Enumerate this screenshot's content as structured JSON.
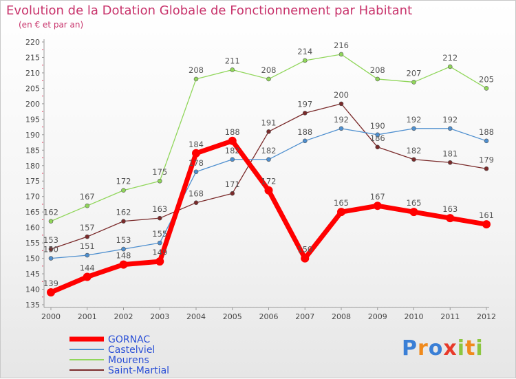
{
  "chart_data": {
    "type": "line",
    "title": "Evolution de la Dotation Globale de Fonctionnement par Habitant",
    "subtitle": "(en € et par an)",
    "x": [
      "2000",
      "2001",
      "2002",
      "2003",
      "2004",
      "2005",
      "2006",
      "2007",
      "2008",
      "2009",
      "2010",
      "2011",
      "2012"
    ],
    "ylim": [
      135,
      220
    ],
    "yticks": [
      135,
      140,
      145,
      150,
      155,
      160,
      165,
      170,
      175,
      180,
      185,
      190,
      195,
      200,
      205,
      210,
      215,
      220
    ],
    "grid": false,
    "legend_position": "bottom-left",
    "series": [
      {
        "name": "Mourens",
        "color": "#90d65a",
        "values": [
          162,
          167,
          172,
          175,
          208,
          211,
          208,
          214,
          216,
          208,
          207,
          212,
          205
        ]
      },
      {
        "name": "Saint-Martial",
        "color": "#7a2a2a",
        "values": [
          153,
          157,
          162,
          163,
          168,
          171,
          191,
          197,
          200,
          186,
          182,
          181,
          179
        ]
      },
      {
        "name": "Castelviel",
        "color": "#4e8fcf",
        "values": [
          150,
          151,
          153,
          155,
          178,
          182,
          182,
          188,
          192,
          190,
          192,
          192,
          188
        ]
      },
      {
        "name": "GORNAC",
        "color": "#ff0000",
        "values": [
          139,
          144,
          148,
          149,
          184,
          188,
          172,
          150,
          165,
          167,
          165,
          163,
          161
        ]
      }
    ],
    "legend": [
      "GORNAC",
      "Castelviel",
      "Mourens",
      "Saint-Martial"
    ]
  },
  "logo": {
    "text": "Proxiti",
    "letter_colors": [
      "#3a7fd6",
      "#f08a1c",
      "#3a7fd6",
      "#e83a2a",
      "#8cc63f",
      "#f08a1c",
      "#8cc63f"
    ]
  }
}
